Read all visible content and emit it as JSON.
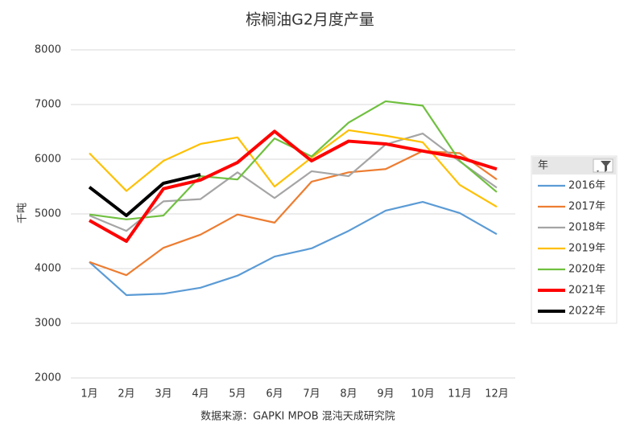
{
  "chart_data": {
    "type": "line",
    "title": "棕榈油G2月度产量",
    "y_label": "千吨",
    "source": "数据来源：GAPKI MPOB 混沌天成研究院",
    "legend_title": "年",
    "categories": [
      "1月",
      "2月",
      "3月",
      "4月",
      "5月",
      "6月",
      "7月",
      "8月",
      "9月",
      "10月",
      "11月",
      "12月"
    ],
    "ylim": [
      2000,
      8000
    ],
    "yticks": [
      2000,
      3000,
      4000,
      5000,
      6000,
      7000,
      8000
    ],
    "grid": true,
    "legend": "right",
    "series": [
      {
        "name": "2016年",
        "color": "#5b9bd5",
        "values": [
          4120,
          3515,
          3540,
          3650,
          3870,
          4220,
          4370,
          4690,
          5060,
          5220,
          5015,
          4630
        ]
      },
      {
        "name": "2017年",
        "color": "#ed7d31",
        "values": [
          4120,
          3880,
          4380,
          4620,
          4990,
          4840,
          5590,
          5760,
          5820,
          6150,
          6110,
          5630
        ]
      },
      {
        "name": "2018年",
        "color": "#a5a5a5",
        "values": [
          4970,
          4690,
          5230,
          5270,
          5760,
          5290,
          5780,
          5690,
          6270,
          6470,
          5960,
          5480
        ]
      },
      {
        "name": "2019年",
        "color": "#ffc000",
        "values": [
          6110,
          5420,
          5970,
          6280,
          6400,
          5500,
          6030,
          6530,
          6430,
          6310,
          5530,
          5130
        ]
      },
      {
        "name": "2020年",
        "color": "#70c040",
        "values": [
          4990,
          4900,
          4970,
          5690,
          5630,
          6380,
          6050,
          6670,
          7060,
          6980,
          5970,
          5400
        ]
      },
      {
        "name": "2021年",
        "color": "#ff0000",
        "values": [
          4880,
          4500,
          5460,
          5620,
          5940,
          6510,
          5970,
          6330,
          6280,
          6150,
          6030,
          5820
        ]
      },
      {
        "name": "2022年",
        "color": "#000000",
        "values": [
          5490,
          4970,
          5560,
          5720,
          null,
          null,
          null,
          null,
          null,
          null,
          null,
          null
        ]
      }
    ]
  }
}
